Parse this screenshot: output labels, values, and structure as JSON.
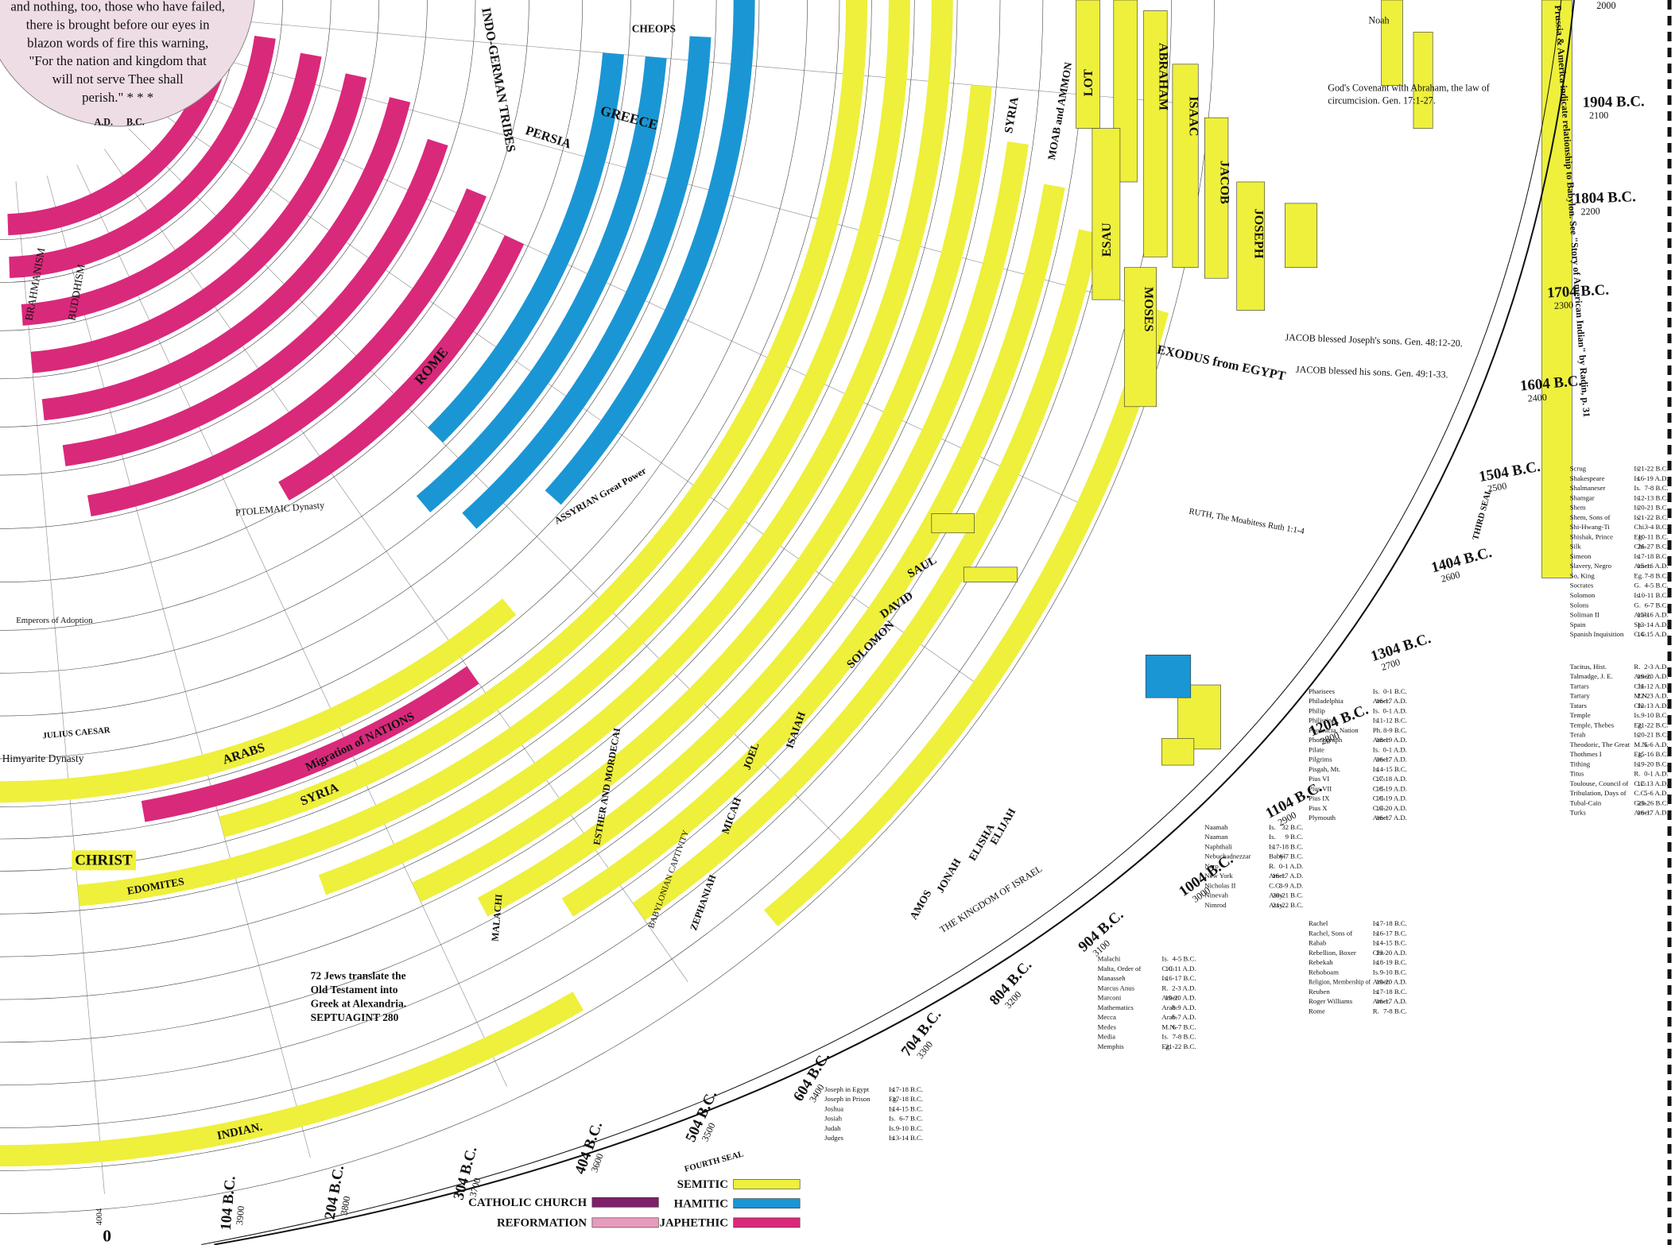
{
  "quote": [
    "and nothing, too, those who have failed,",
    "there is brought before our eyes in",
    "blazon words of fire this warning,",
    "\"For the nation and kingdom that",
    "will not serve Thee shall",
    "perish.\" * * *"
  ],
  "labels": [
    "GREECE",
    "PERSIA",
    "ROME",
    "SYRIA",
    "Migration of NATIONS",
    "ARABS",
    "EDOMITES",
    "INDIAN.",
    "CHRIST",
    "Himyarite Dynasty",
    "INDO-GERMAN TRIBES",
    "EXODUS from EGYPT",
    "THE KINGDOM OF ISRAEL",
    "ABRAHAM",
    "ISAAC",
    "JACOB",
    "JOSEPH",
    "MOSES",
    "ESAU",
    "LOT",
    "SAUL",
    "DAVID",
    "SOLOMON",
    "BUDDHISM",
    "BRAHMANISM",
    "CHEOPS",
    "MOAB and AMMON",
    "SYRIA",
    "JOEL",
    "ISAIAH",
    "MICAH",
    "JONAH",
    "AMOS",
    "ELIJAH",
    "ELISHA",
    "MALACHI",
    "ZEPHANIAH",
    "ESTHER AND MORDECAI",
    "72 Jews translate the",
    "Old Testament into",
    "Greek at Alexandria.",
    "SEPTUAGINT 280",
    "ASSYRIAN Great Power",
    "PTOLEMAIC Dynasty",
    "JULIUS CAESAR",
    "Emperors of Adoption",
    "Noah",
    "God's Covenant with Abraham, the law of",
    "circumcision. Gen. 17:1-27.",
    "JACOB blessed Joseph's sons. Gen. 48:12-20.",
    "JACOB blessed his sons. Gen. 49:1-33.",
    "RUTH, The Moabitess  Ruth 1:1-4",
    "THIRD SEAL",
    "FOURTH SEAL",
    "A.D.",
    "B.C.",
    "Prussia & America indicate relationship to Babylon. See \"Story of American Indian\" by Radin, p. 31",
    "BABYLONIAN CAPTIVITY"
  ],
  "dates": [
    {
      "label": "104 B.C.",
      "year": "3900"
    },
    {
      "label": "204 B.C.",
      "year": "3800"
    },
    {
      "label": "304 B.C.",
      "year": "3700"
    },
    {
      "label": "404 B.C.",
      "year": "3600"
    },
    {
      "label": "504 B.C.",
      "year": "3500"
    },
    {
      "label": "604 B.C.",
      "year": "3400"
    },
    {
      "label": "704 B.C.",
      "year": "3300"
    },
    {
      "label": "804 B.C.",
      "year": "3200"
    },
    {
      "label": "904 B.C.",
      "year": "3100"
    },
    {
      "label": "1004 B.C.",
      "year": "3000"
    },
    {
      "label": "1104 B.C.",
      "year": "2900"
    },
    {
      "label": "1204 B.C.",
      "year": "2800"
    },
    {
      "label": "1304 B.C.",
      "year": "2700"
    },
    {
      "label": "1404 B.C.",
      "year": "2600"
    },
    {
      "label": "1504 B.C.",
      "year": "2500"
    },
    {
      "label": "1604 B.C.",
      "year": "2400"
    },
    {
      "label": "1704 B.C.",
      "year": "2300"
    },
    {
      "label": "1804 B.C.",
      "year": "2200"
    },
    {
      "label": "1904 B.C.",
      "year": "2100"
    }
  ],
  "axis_marks": [
    "0",
    "4004",
    "2000"
  ],
  "legend": [
    {
      "name": "CATHOLIC CHURCH",
      "color": "#7d1f6a"
    },
    {
      "name": "REFORMATION",
      "color": "#e79bbd"
    },
    {
      "name": "SEMITIC",
      "color": "#eef03c"
    },
    {
      "name": "HAMITIC",
      "color": "#1b96d4"
    },
    {
      "name": "JAPHETHIC",
      "color": "#d9297b"
    }
  ],
  "index": [
    [
      [
        "Scrug",
        "Is.",
        "21-22 B.C."
      ],
      [
        "Shakespeare",
        "Is.",
        "16-19 A.D."
      ],
      [
        "Shalmaneser",
        "Is.",
        "7-8 B.C."
      ],
      [
        "Shamgar",
        "Is.",
        "12-13 B.C."
      ],
      [
        "Shem",
        "Is.",
        "20-21 B.C."
      ],
      [
        "Shem, Sons of",
        "Is.",
        "21-22 B.C."
      ],
      [
        "Shi-Hwang-Ti",
        "Chi.",
        "3-4 B.C."
      ],
      [
        "Shishak, Prince",
        "Eg.",
        "10-11 B.C."
      ],
      [
        "Silk",
        "Chi.",
        "26-27 B.C."
      ],
      [
        "Simeon",
        "Is.",
        "17-18 B.C."
      ],
      [
        "Slavery, Negro",
        "Amer.",
        "15-16 A.D."
      ],
      [
        "So, King",
        "Eg.",
        "7-8 B.C."
      ],
      [
        "Socrates",
        "G.",
        "4-5 B.C."
      ],
      [
        "Solomon",
        "Is.",
        "10-11 B.C."
      ],
      [
        "Solons",
        "G.",
        "6-7 B.C."
      ],
      [
        "Soliman II",
        "Arab.",
        "15-16 A.D."
      ],
      [
        "Spain",
        "Sp.",
        "13-14 A.D."
      ],
      [
        "Spanish Inquisition",
        "C.C.",
        "14-15 A.D."
      ]
    ],
    [
      [
        "Pharisees",
        "Is.",
        "0-1 B.C."
      ],
      [
        "Philadelphia",
        "Amer.",
        "16-17 A.D."
      ],
      [
        "Philip",
        "Is.",
        "0-1 A.D."
      ],
      [
        "Philistines",
        "Is.",
        "11-12 B.C."
      ],
      [
        "Phoenicia, Nation",
        "Ph.",
        "8-9 B.C."
      ],
      [
        "Phonograph",
        "Amer.",
        "18-19 A.D."
      ],
      [
        "Pilate",
        "Is.",
        "0-1 A.D."
      ],
      [
        "Pilgrims",
        "Amer.",
        "16-17 A.D."
      ],
      [
        "Pisgah, Mt.",
        "Is.",
        "14-15 B.C."
      ],
      [
        "Pius VI",
        "C.C.",
        "17-18 A.D."
      ],
      [
        "Pius VII",
        "C.C.",
        "18-19 A.D."
      ],
      [
        "Pius IX",
        "C.C.",
        "18-19 A.D."
      ],
      [
        "Pius X",
        "C.C.",
        "19-20 A.D."
      ],
      [
        "Plymouth",
        "Amer.",
        "16-17 A.D."
      ]
    ],
    [
      [
        "Tacitus, Hist.",
        "R.",
        "2-3 A.D."
      ],
      [
        "Talmadge, J. E.",
        "Amer.",
        "19-20 A.D."
      ],
      [
        "Tartars",
        "Chi.",
        "11-12 A.D."
      ],
      [
        "Tartary",
        "M.N.",
        "22-23 A.D."
      ],
      [
        "Tatars",
        "Chi.",
        "12-13 A.D."
      ],
      [
        "Temple",
        "Is.",
        "9-10 B.C."
      ],
      [
        "Temple, Thebes",
        "Eg.",
        "21-22 B.C."
      ],
      [
        "Terah",
        "Is.",
        "20-21 B.C."
      ],
      [
        "Theodoric, The Great",
        "M.N.",
        "5-6 A.D."
      ],
      [
        "Thothmes I",
        "Eg.",
        "15-16 B.C."
      ],
      [
        "Tithing",
        "Is.",
        "19-20 B.C."
      ],
      [
        "Titus",
        "R.",
        "0-1 A.D."
      ],
      [
        "Toulouse, Council of",
        "C.C.",
        "12-13 A.D."
      ],
      [
        "Tribulation, Days of",
        "C.C.",
        "5-6 A.D."
      ],
      [
        "Tubal-Cain",
        "Gen.",
        "25-26 B.C."
      ],
      [
        "Turks",
        "Amer.",
        "16-17 A.D."
      ]
    ],
    [
      [
        "Malachi",
        "Is.",
        "4-5 B.C."
      ],
      [
        "Malta, Order of",
        "C.C.",
        "10-11 A.D."
      ],
      [
        "Manasseh",
        "Is.",
        "16-17 B.C."
      ],
      [
        "Marcus Anus",
        "R.",
        "2-3 A.D."
      ],
      [
        "Marconi",
        "Amer.",
        "19-20 A.D."
      ],
      [
        "Mathematics",
        "Arab.",
        "8-9 A.D."
      ],
      [
        "Mecca",
        "Arab.",
        "6-7 A.D."
      ],
      [
        "Medes",
        "M.N.",
        "6-7 B.C."
      ],
      [
        "Media",
        "Is.",
        "7-8 B.C."
      ],
      [
        "Memphis",
        "Eg.",
        "21-22 B.C."
      ]
    ],
    [
      [
        "Joseph in Egypt",
        "Is.",
        "17-18 B.C."
      ],
      [
        "Joseph in Prison",
        "Eg.",
        "17-18 B.C."
      ],
      [
        "Joshua",
        "Is.",
        "14-15 B.C."
      ],
      [
        "Josiah",
        "Is.",
        "6-7 B.C."
      ],
      [
        "Judah",
        "Is.",
        "9-10 B.C."
      ],
      [
        "Judges",
        "Is.",
        "13-14 B.C."
      ]
    ],
    [
      [
        "Naamah",
        "Is.",
        "32 B.C."
      ],
      [
        "Naaman",
        "Is.",
        "9 B.C."
      ],
      [
        "Naphthali",
        "Is.",
        "17-18 B.C."
      ],
      [
        "Nebuchadnezzar",
        "Babyl.",
        "6-7 B.C."
      ],
      [
        "Nero",
        "R.",
        "0-1 A.D."
      ],
      [
        "New York",
        "Amer.",
        "16-17 A.D."
      ],
      [
        "Nicholas II",
        "C.C.",
        "8-9 A.D."
      ],
      [
        "Ninevah",
        "Assy.",
        "20-21 B.C."
      ],
      [
        "Nimrod",
        "Assy.",
        "21-22 B.C."
      ]
    ],
    [
      [
        "Rachel",
        "Is.",
        "17-18 B.C."
      ],
      [
        "Rachel, Sons of",
        "Is.",
        "16-17 B.C."
      ],
      [
        "Rahab",
        "Is.",
        "14-15 B.C."
      ],
      [
        "Rebellion, Boxer",
        "Chi.",
        "19-20 A.D."
      ],
      [
        "Rebekah",
        "Is.",
        "18-19 B.C."
      ],
      [
        "Rehoboam",
        "Is.",
        "9-10 B.C."
      ],
      [
        "Religion, Membership of",
        "Amer.",
        "19-20 A.D."
      ],
      [
        "Reuben",
        "Is.",
        "17-18 B.C."
      ],
      [
        "Roger Williams",
        "Amer.",
        "16-17 A.D."
      ],
      [
        "Rome",
        "R.",
        "7-8 B.C."
      ]
    ]
  ]
}
